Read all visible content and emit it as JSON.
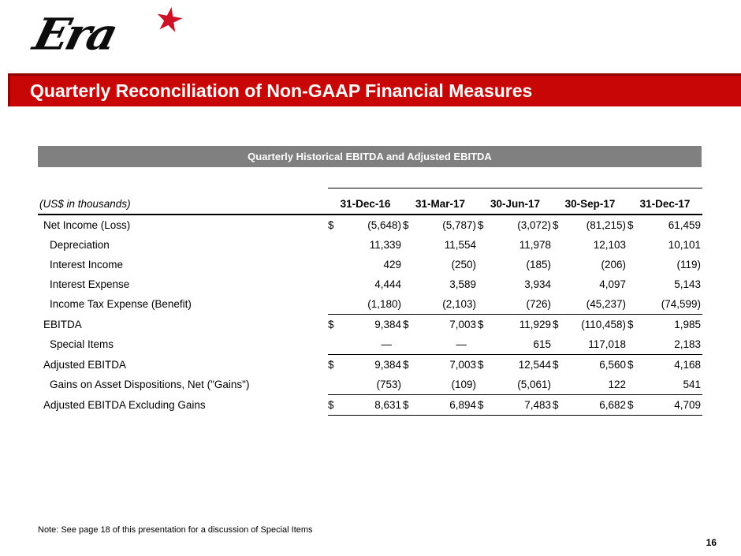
{
  "logo": {
    "text": "Era",
    "star": "★"
  },
  "title_bar": {
    "text": "Quarterly Reconciliation of Non-GAAP Financial Measures",
    "bg": "#c90606"
  },
  "section_header": {
    "text": "Quarterly Historical EBITDA and Adjusted EBITDA",
    "bg": "#808080"
  },
  "table": {
    "units_label": "(US$ in thousands)",
    "columns": [
      "31-Dec-16",
      "31-Mar-17",
      "30-Jun-17",
      "30-Sep-17",
      "31-Dec-17"
    ],
    "currency_symbol": "$",
    "rows": [
      {
        "label": "Net Income (Loss)",
        "indent": false,
        "dollar": true,
        "values": [
          "(5,648)",
          "(5,787)",
          "(3,072)",
          "(81,215)",
          "61,459"
        ],
        "rule_below": false
      },
      {
        "label": "Depreciation",
        "indent": true,
        "dollar": false,
        "values": [
          "11,339",
          "11,554",
          "11,978",
          "12,103",
          "10,101"
        ],
        "rule_below": false
      },
      {
        "label": "Interest Income",
        "indent": true,
        "dollar": false,
        "values": [
          "429",
          "(250)",
          "(185)",
          "(206)",
          "(119)"
        ],
        "rule_below": false
      },
      {
        "label": "Interest Expense",
        "indent": true,
        "dollar": false,
        "values": [
          "4,444",
          "3,589",
          "3,934",
          "4,097",
          "5,143"
        ],
        "rule_below": false
      },
      {
        "label": "Income Tax Expense (Benefit)",
        "indent": true,
        "dollar": false,
        "values": [
          "(1,180)",
          "(2,103)",
          "(726)",
          "(45,237)",
          "(74,599)"
        ],
        "rule_below": true
      },
      {
        "label": "EBITDA",
        "indent": false,
        "dollar": true,
        "values": [
          "9,384",
          "7,003",
          "11,929",
          "(110,458)",
          "1,985"
        ],
        "rule_below": false
      },
      {
        "label": "Special Items",
        "indent": true,
        "dollar": false,
        "values": [
          "—",
          "—",
          "615",
          "117,018",
          "2,183"
        ],
        "rule_below": true
      },
      {
        "label": "Adjusted EBITDA",
        "indent": false,
        "dollar": true,
        "values": [
          "9,384",
          "7,003",
          "12,544",
          "6,560",
          "4,168"
        ],
        "rule_below": false
      },
      {
        "label": "Gains on Asset Dispositions, Net (\"Gains\")",
        "indent": true,
        "dollar": false,
        "values": [
          "(753)",
          "(109)",
          "(5,061)",
          "122",
          "541"
        ],
        "rule_below": true
      },
      {
        "label": "Adjusted EBITDA Excluding Gains",
        "indent": false,
        "dollar": true,
        "values": [
          "8,631",
          "6,894",
          "7,483",
          "6,682",
          "4,709"
        ],
        "rule_below": true
      }
    ]
  },
  "footnote": "Note: See page 18 of this presentation for a discussion of Special Items",
  "page_number": "16"
}
